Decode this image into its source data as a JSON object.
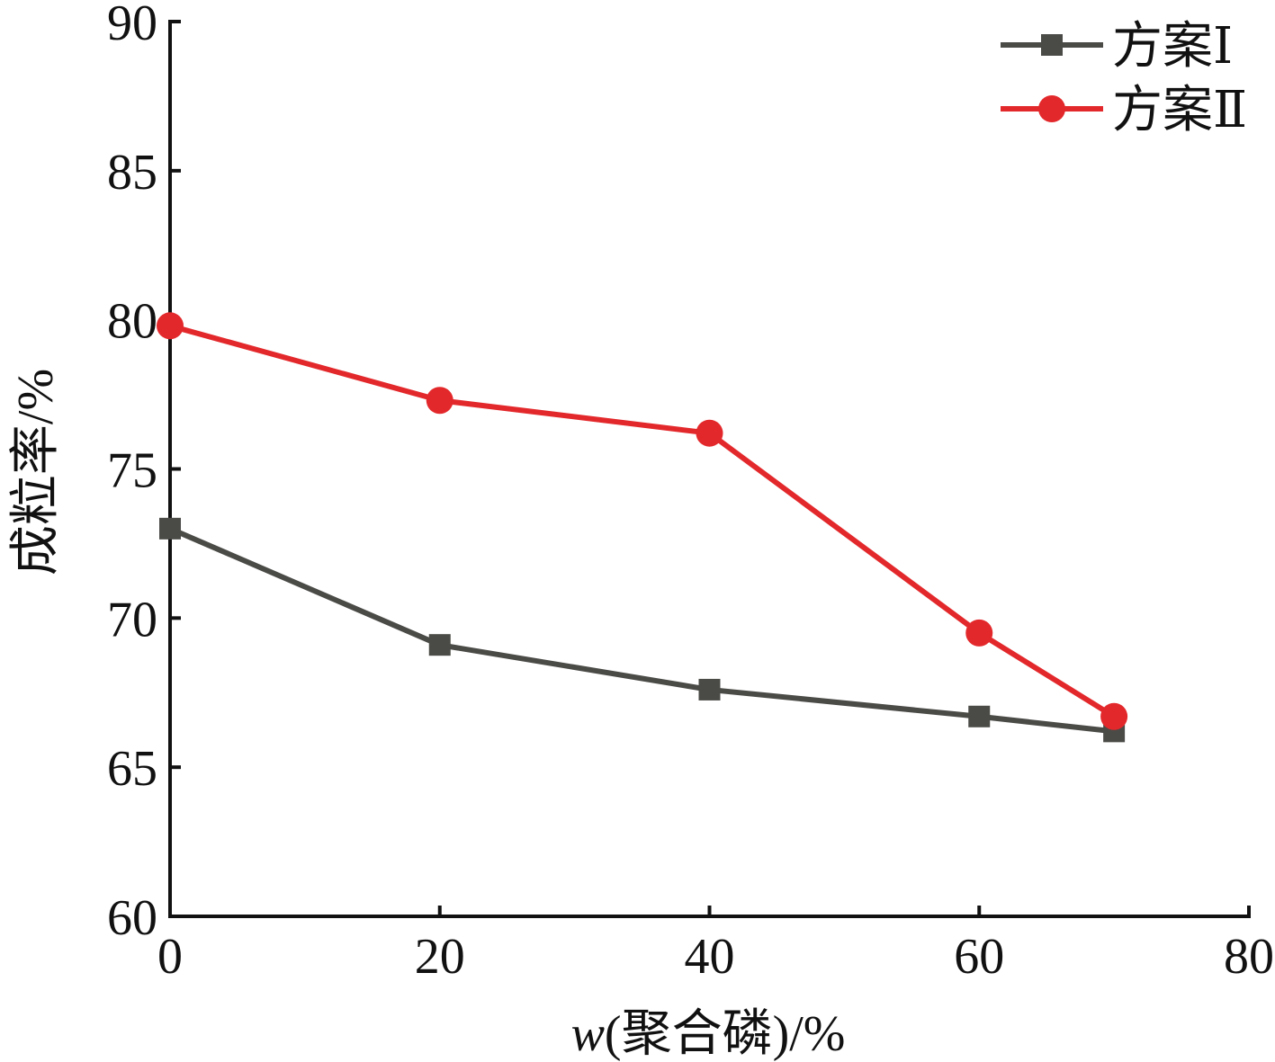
{
  "chart_data": {
    "type": "line",
    "title": "",
    "xlabel_var": "w",
    "xlabel_rest": "(聚合磷)/%",
    "ylabel": "成粒率/%",
    "xlim": [
      0,
      80
    ],
    "ylim": [
      60,
      90
    ],
    "xticks": [
      0,
      20,
      40,
      60,
      80
    ],
    "yticks": [
      60,
      65,
      70,
      75,
      80,
      85,
      90
    ],
    "grid": false,
    "legend_position": "top-right",
    "x": [
      0,
      20,
      40,
      60,
      70
    ],
    "series": [
      {
        "name": "方案Ⅰ",
        "values": [
          73.0,
          69.1,
          67.6,
          66.7,
          66.2
        ],
        "color": "#4a4b47",
        "marker": "square"
      },
      {
        "name": "方案Ⅱ",
        "values": [
          79.8,
          77.3,
          76.2,
          69.5,
          66.7
        ],
        "color": "#e3282b",
        "marker": "circle"
      }
    ]
  }
}
